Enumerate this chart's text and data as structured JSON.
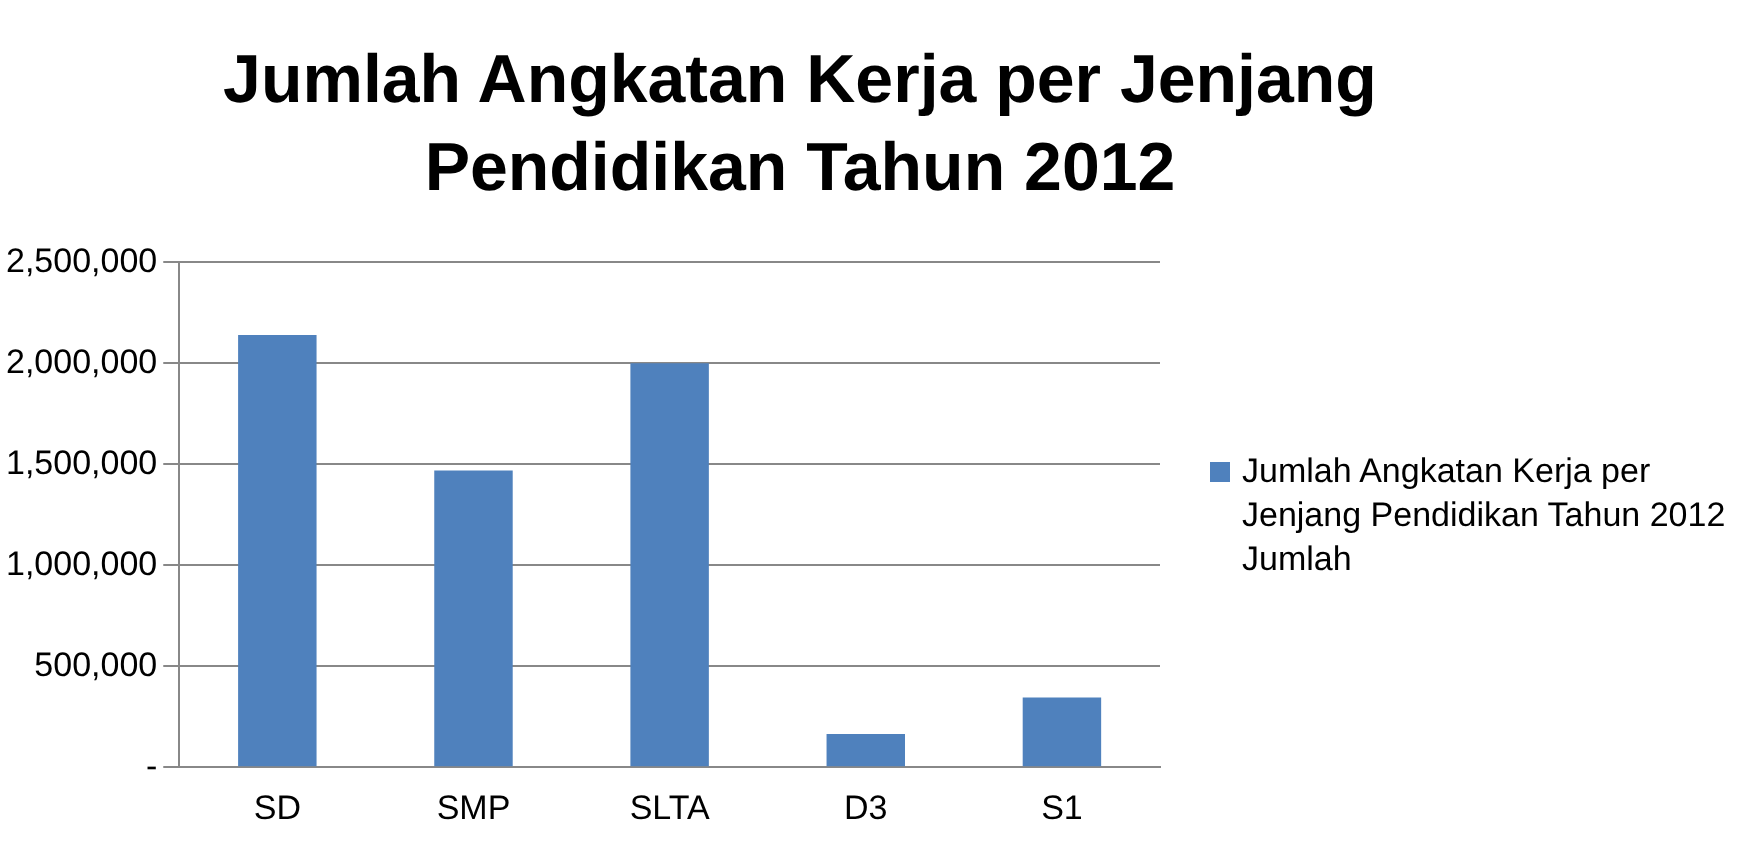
{
  "chart_data": {
    "type": "bar",
    "title": "Jumlah Angkatan Kerja per Jenjang Pendidikan Tahun 2012",
    "categories": [
      "SD",
      "SMP",
      "SLTA",
      "D3",
      "S1"
    ],
    "series": [
      {
        "name": "Jumlah Angkatan Kerja per Jenjang Pendidikan Tahun 2012 Jumlah",
        "color": "#4f81bd",
        "values": [
          2140000,
          1470000,
          2000000,
          165000,
          345000
        ]
      }
    ],
    "ylim": [
      0,
      2500000
    ],
    "yticks": [
      {
        "value": 0,
        "label": "-"
      },
      {
        "value": 500000,
        "label": "500,000"
      },
      {
        "value": 1000000,
        "label": "1,000,000"
      },
      {
        "value": 1500000,
        "label": "1,500,000"
      },
      {
        "value": 2000000,
        "label": "2,000,000"
      },
      {
        "value": 2500000,
        "label": "2,500,000"
      }
    ],
    "grid": "y",
    "legend": "right"
  }
}
